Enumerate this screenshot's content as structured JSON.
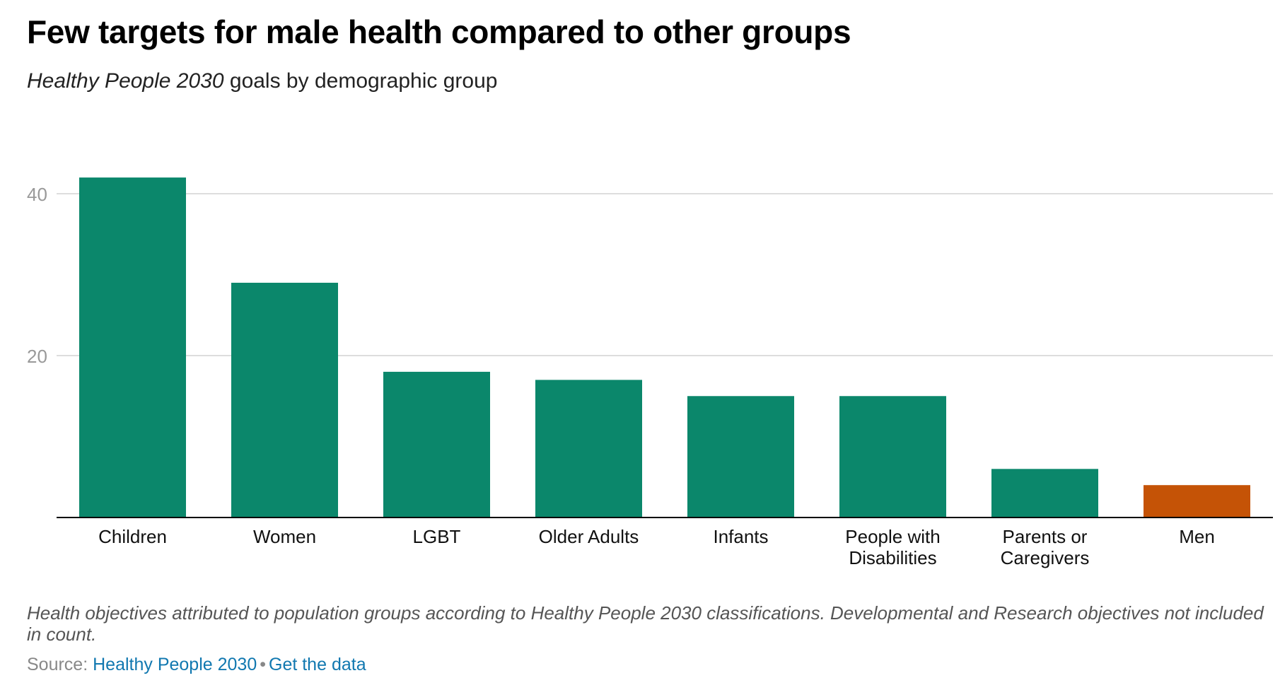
{
  "header": {
    "title": "Few targets for male health compared to other groups",
    "subtitle_italic": "Healthy People 2030",
    "subtitle_rest": " goals by demographic group"
  },
  "chart_data": {
    "type": "bar",
    "categories": [
      "Children",
      "Women",
      "LGBT",
      "Older Adults",
      "Infants",
      "People with Disabilities",
      "Parents or Caregivers",
      "Men"
    ],
    "category_lines": [
      [
        "Children"
      ],
      [
        "Women"
      ],
      [
        "LGBT"
      ],
      [
        "Older Adults"
      ],
      [
        "Infants"
      ],
      [
        "People with",
        "Disabilities"
      ],
      [
        "Parents or",
        "Caregivers"
      ],
      [
        "Men"
      ]
    ],
    "values": [
      42,
      29,
      18,
      17,
      15,
      15,
      6,
      4
    ],
    "bar_colors": [
      "#0b876b",
      "#0b876b",
      "#0b876b",
      "#0b876b",
      "#0b876b",
      "#0b876b",
      "#0b876b",
      "#c55306"
    ],
    "ylim": [
      0,
      40
    ],
    "yticks": [
      20,
      40
    ],
    "grid": true,
    "title": "Few targets for male health compared to other groups",
    "xlabel": "",
    "ylabel": ""
  },
  "footer": {
    "note": "Health objectives attributed to population groups according to Healthy People 2030 classifications. Developmental and Research objectives not included in count.",
    "source_prefix": "Source: ",
    "source_link": "Healthy People 2030",
    "separator": "•",
    "data_link": "Get the data"
  },
  "colors": {
    "primary_bar": "#0b876b",
    "highlight_bar": "#c55306",
    "link": "#1178b0",
    "grid": "#dddddd",
    "axis": "#000000"
  }
}
